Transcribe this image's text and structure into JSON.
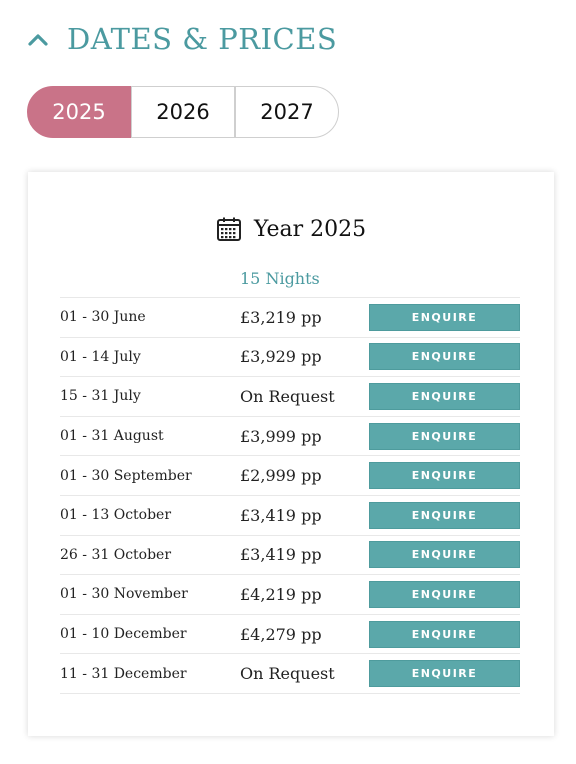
{
  "section": {
    "title": "DATES & PRICES",
    "toggle_icon": "chevron-up-icon"
  },
  "year_tabs": [
    {
      "label": "2025",
      "active": true
    },
    {
      "label": "2026",
      "active": false
    },
    {
      "label": "2027",
      "active": false
    }
  ],
  "card": {
    "icon": "calendar-icon",
    "title": "Year 2025",
    "duration_header": "15 Nights",
    "rows": [
      {
        "dates": "01 - 30 June",
        "price": "£3,219 pp",
        "button": "ENQUIRE"
      },
      {
        "dates": "01 - 14 July",
        "price": "£3,929 pp",
        "button": "ENQUIRE"
      },
      {
        "dates": "15 - 31 July",
        "price": "On Request",
        "button": "ENQUIRE"
      },
      {
        "dates": "01 - 31 August",
        "price": "£3,999 pp",
        "button": "ENQUIRE"
      },
      {
        "dates": "01 - 30 September",
        "price": "£2,999 pp",
        "button": "ENQUIRE"
      },
      {
        "dates": "01 - 13 October",
        "price": "£3,419 pp",
        "button": "ENQUIRE"
      },
      {
        "dates": "26 - 31 October",
        "price": "£3,419 pp",
        "button": "ENQUIRE"
      },
      {
        "dates": "01 - 30 November",
        "price": "£4,219 pp",
        "button": "ENQUIRE"
      },
      {
        "dates": "01 - 10 December",
        "price": "£4,279 pp",
        "button": "ENQUIRE"
      },
      {
        "dates": "11 - 31 December",
        "price": "On Request",
        "button": "ENQUIRE"
      }
    ]
  },
  "colors": {
    "accent_teal": "#5ba8aa",
    "heading_teal": "#4b9aa0",
    "active_tab": "#c97388"
  }
}
